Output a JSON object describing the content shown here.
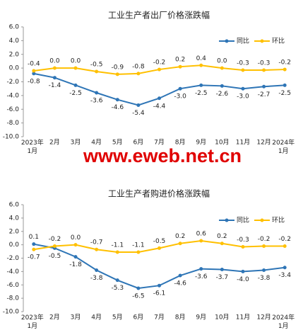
{
  "chart_data": [
    {
      "type": "line",
      "title": "工业生产者出厂价格涨跌幅",
      "categories": [
        "2023年1月",
        "2月",
        "3月",
        "4月",
        "5月",
        "6月",
        "7月",
        "8月",
        "9月",
        "10月",
        "11月",
        "12月",
        "2024年1月"
      ],
      "series": [
        {
          "name": "同比",
          "color": "#2e75b6",
          "values": [
            -0.8,
            -1.4,
            -2.5,
            -3.6,
            -4.6,
            -5.4,
            -4.4,
            -3.0,
            -2.5,
            -2.6,
            -3.0,
            -2.7,
            -2.5
          ],
          "value_labels": [
            "-0.8",
            "-1.4",
            "-2.5",
            "-3.6",
            "-4.6",
            "-5.4",
            "-4.4",
            "-3.0",
            "-2.5",
            "-2.6",
            "-3.0",
            "-2.7",
            "-2.5"
          ]
        },
        {
          "name": "环比",
          "color": "#ffc000",
          "values": [
            -0.4,
            0.0,
            0.0,
            -0.5,
            -0.9,
            -0.8,
            -0.2,
            0.2,
            0.4,
            0.0,
            -0.3,
            -0.3,
            -0.2
          ],
          "value_labels": [
            "-0.4",
            "0.0",
            "0.0",
            "-0.5",
            "-0.9",
            "-0.8",
            "-0.2",
            "0.2",
            "0.4",
            "0.0",
            "-0.3",
            "-0.3",
            "-0.2"
          ]
        }
      ],
      "ylim": [
        -10,
        6
      ],
      "yticks": [
        {
          "value": 6,
          "label": "6.0"
        },
        {
          "value": 4,
          "label": "4.0"
        },
        {
          "value": 2,
          "label": "2.0"
        },
        {
          "value": 0,
          "label": "0.0"
        },
        {
          "value": -2,
          "label": "-2.0"
        },
        {
          "value": -4,
          "label": "-4.0"
        },
        {
          "value": -6,
          "label": "-6.0"
        },
        {
          "value": -8,
          "label": "-8.0"
        },
        {
          "value": -10,
          "label": "-10.0"
        }
      ],
      "legend": "upper right"
    },
    {
      "type": "line",
      "title": "工业生产者购进价格涨跌幅",
      "categories": [
        "2023年1月",
        "2月",
        "3月",
        "4月",
        "5月",
        "6月",
        "7月",
        "8月",
        "9月",
        "10月",
        "11月",
        "12月",
        "2024年1月"
      ],
      "series": [
        {
          "name": "同比",
          "color": "#2e75b6",
          "values": [
            0.1,
            -0.5,
            -1.8,
            -3.8,
            -5.3,
            -6.5,
            -6.1,
            -4.6,
            -3.6,
            -3.7,
            -4.0,
            -3.8,
            -3.4
          ],
          "value_labels": [
            "0.1",
            "-0.5",
            "-1.8",
            "-3.8",
            "-5.3",
            "-6.5",
            "-6.1",
            "-4.6",
            "-3.6",
            "-3.7",
            "-4.0",
            "-3.8",
            "-3.4"
          ]
        },
        {
          "name": "环比",
          "color": "#ffc000",
          "values": [
            -0.7,
            -0.2,
            0.0,
            -0.7,
            -1.1,
            -1.1,
            -0.5,
            0.2,
            0.6,
            0.2,
            -0.3,
            -0.2,
            -0.2
          ],
          "value_labels": [
            "-0.7",
            "-0.2",
            "0.0",
            "-0.7",
            "-1.1",
            "-1.1",
            "-0.5",
            "0.2",
            "0.6",
            "0.2",
            "-0.3",
            "-0.2",
            "-0.2"
          ]
        }
      ],
      "ylim": [
        -10,
        6
      ],
      "yticks": [
        {
          "value": 6,
          "label": "6.0"
        },
        {
          "value": 4,
          "label": "4.0"
        },
        {
          "value": 2,
          "label": "2.0"
        },
        {
          "value": 0,
          "label": "0.0"
        },
        {
          "value": -2,
          "label": "-2.0"
        },
        {
          "value": -4,
          "label": "-4.0"
        },
        {
          "value": -6,
          "label": "-6.0"
        },
        {
          "value": -8,
          "label": "-8.0"
        },
        {
          "value": -10,
          "label": "-10.0"
        }
      ],
      "legend": "upper right"
    }
  ],
  "watermark": "www.eweb.net.cn"
}
